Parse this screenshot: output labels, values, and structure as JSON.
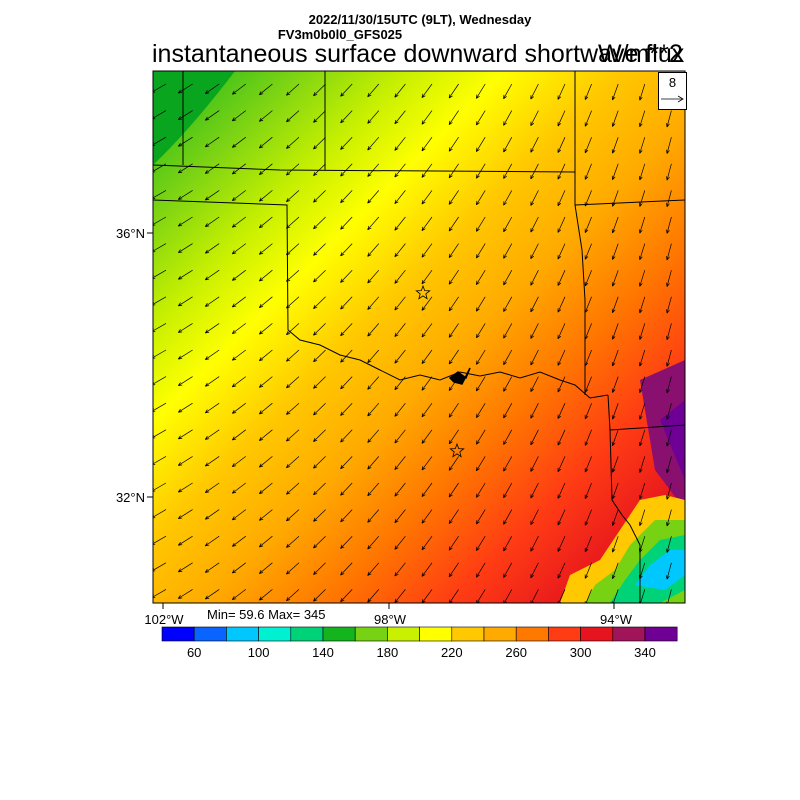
{
  "header": {
    "line1": "2022/11/30/15UTC (9LT), Wednesday",
    "line2": "FV3m0b0l0_GFS025",
    "title": "instantaneous surface downward shortwave flux",
    "units": "W/m**2"
  },
  "map": {
    "lat_labels": [
      "36°N",
      "32°N"
    ],
    "lon_labels": [
      "102°W",
      "98°W",
      "94°W"
    ],
    "field_stats": {
      "min": 59.6,
      "max": 345
    },
    "minmax_text": "Min= 59.6 Max= 345"
  },
  "vector_reference": {
    "value": "8",
    "icon": "right-arrow-icon"
  },
  "colorbar": {
    "colors": [
      "#0000ff",
      "#0a64ff",
      "#00c8ff",
      "#00f0d2",
      "#00d278",
      "#14b41e",
      "#78d214",
      "#c8f000",
      "#ffff00",
      "#ffc800",
      "#ffaa00",
      "#ff7800",
      "#ff3c14",
      "#e6141e",
      "#a0145a",
      "#6e0096"
    ],
    "tick_labels": [
      "60",
      "100",
      "140",
      "180",
      "220",
      "260",
      "300",
      "340"
    ]
  }
}
